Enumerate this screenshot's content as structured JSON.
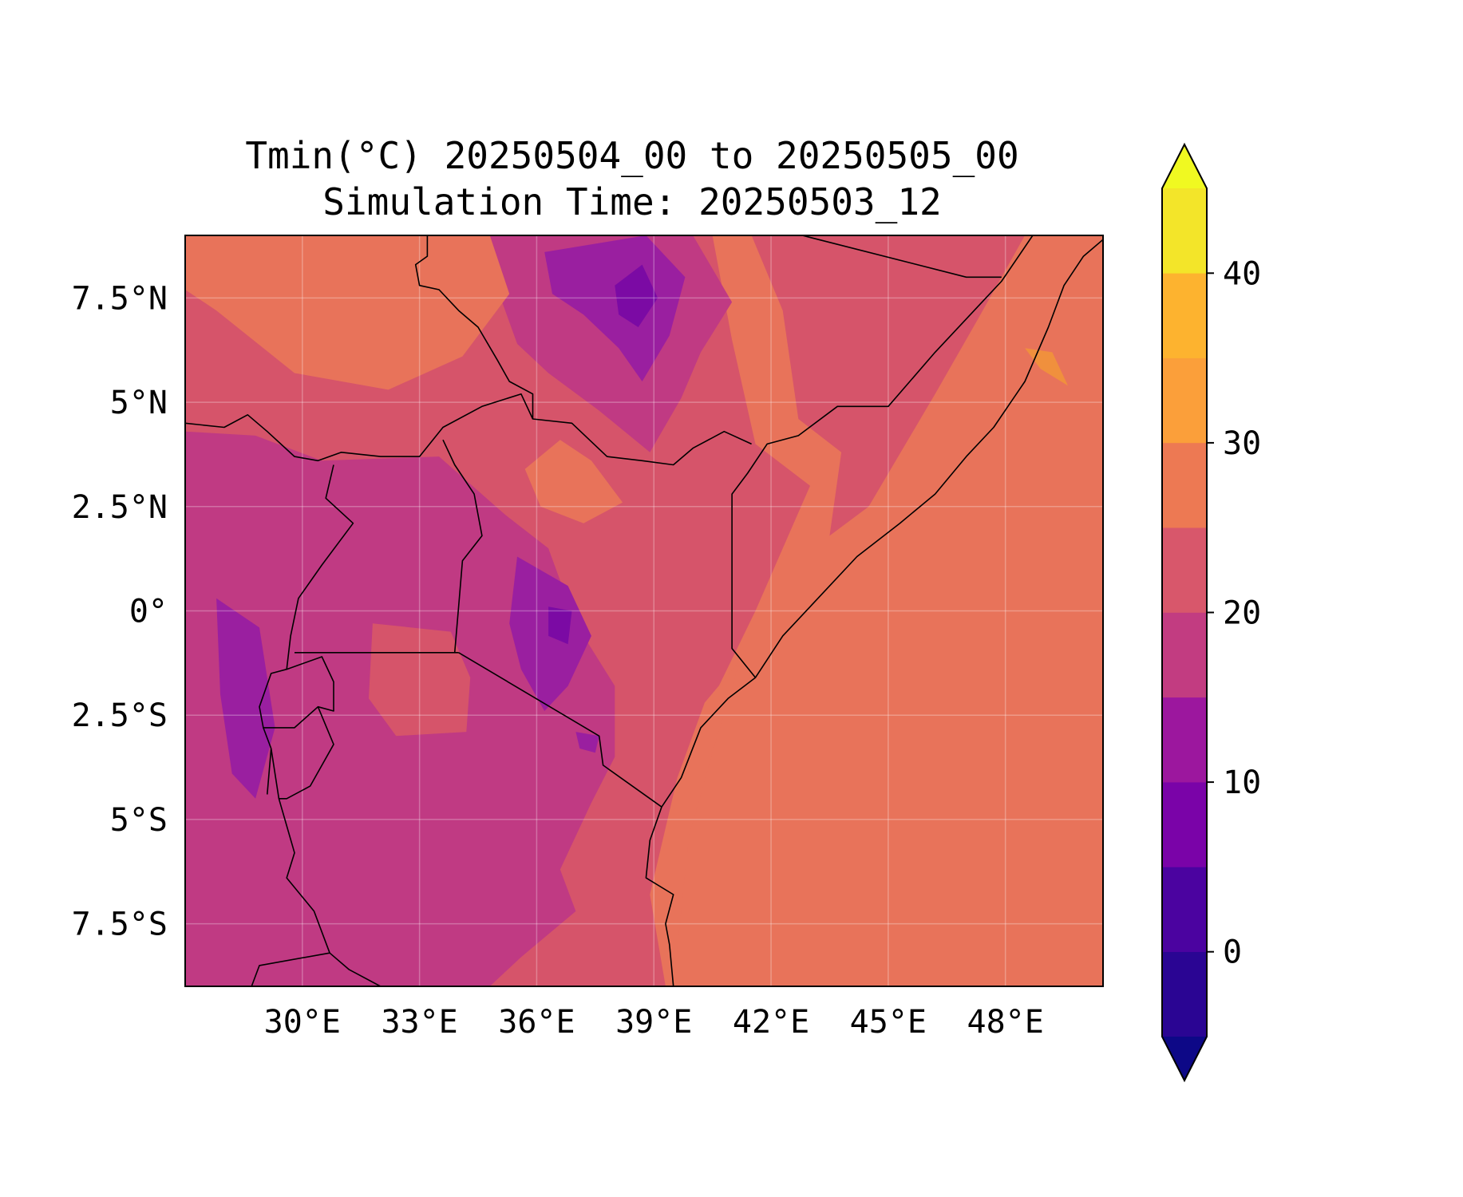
{
  "title": {
    "line1": "Tmin(°C) 20250504_00 to 20250505_00",
    "line2": "Simulation Time: 20250503_12"
  },
  "map": {
    "lon_range": [
      27,
      50.5
    ],
    "lat_range": [
      -9,
      9
    ],
    "lon_ticks": [
      {
        "value": 30,
        "label": "30°E"
      },
      {
        "value": 33,
        "label": "33°E"
      },
      {
        "value": 36,
        "label": "36°E"
      },
      {
        "value": 39,
        "label": "39°E"
      },
      {
        "value": 42,
        "label": "42°E"
      },
      {
        "value": 45,
        "label": "45°E"
      },
      {
        "value": 48,
        "label": "48°E"
      }
    ],
    "lat_ticks": [
      {
        "value": 7.5,
        "label": "7.5°N"
      },
      {
        "value": 5,
        "label": "5°N"
      },
      {
        "value": 2.5,
        "label": "2.5°N"
      },
      {
        "value": 0,
        "label": "0°"
      },
      {
        "value": -2.5,
        "label": "2.5°S"
      },
      {
        "value": -5,
        "label": "5°S"
      },
      {
        "value": -7.5,
        "label": "7.5°S"
      }
    ],
    "gridlines": true,
    "base_fill_color": "#e8735a",
    "regions": [
      {
        "name": "inland-lowland",
        "color": "#d6546a",
        "points": [
          [
            27,
            9
          ],
          [
            40.5,
            9
          ],
          [
            41,
            6.5
          ],
          [
            41.6,
            4
          ],
          [
            43,
            3
          ],
          [
            41.6,
            0
          ],
          [
            40.3,
            -2.5
          ],
          [
            39.5,
            -5
          ],
          [
            39,
            -7
          ],
          [
            39.5,
            -9
          ],
          [
            27,
            -9
          ]
        ]
      },
      {
        "name": "east-highland",
        "color": "#d6546a",
        "points": [
          [
            41.5,
            9
          ],
          [
            48.5,
            9
          ],
          [
            47.3,
            7
          ],
          [
            46.2,
            5.2
          ],
          [
            44.5,
            2.5
          ],
          [
            43.5,
            1.8
          ],
          [
            43.8,
            3.8
          ],
          [
            42.7,
            4.6
          ],
          [
            42.3,
            7.2
          ]
        ]
      },
      {
        "name": "west-highland",
        "color": "#c03a83",
        "points": [
          [
            27,
            4.3
          ],
          [
            28.8,
            4.2
          ],
          [
            30.5,
            3.6
          ],
          [
            33.5,
            3.7
          ],
          [
            35.2,
            2.3
          ],
          [
            36.3,
            1.5
          ],
          [
            37,
            -0.3
          ],
          [
            38,
            -1.8
          ],
          [
            38,
            -3.5
          ],
          [
            37.4,
            -4.6
          ],
          [
            36.6,
            -6.2
          ],
          [
            37,
            -7.2
          ],
          [
            35.6,
            -8.3
          ],
          [
            34.8,
            -9
          ],
          [
            27,
            -9
          ]
        ]
      },
      {
        "name": "ethiopian-plateau",
        "color": "#c03a83",
        "points": [
          [
            34.8,
            9
          ],
          [
            40,
            9
          ],
          [
            41,
            7.4
          ],
          [
            40.2,
            6.2
          ],
          [
            39.7,
            5.1
          ],
          [
            38.9,
            3.8
          ],
          [
            37.6,
            4.8
          ],
          [
            36.3,
            5.7
          ],
          [
            35.5,
            6.4
          ],
          [
            35,
            7.7
          ]
        ]
      },
      {
        "name": "ethiopian-peaks",
        "color": "#9a1fa0",
        "points": [
          [
            36.2,
            8.6
          ],
          [
            38.8,
            9
          ],
          [
            39.8,
            8
          ],
          [
            39.4,
            6.6
          ],
          [
            38.7,
            5.5
          ],
          [
            38.1,
            6.3
          ],
          [
            37.2,
            7.1
          ],
          [
            36.4,
            7.6
          ]
        ]
      },
      {
        "name": "kenya-highland",
        "color": "#9a1fa0",
        "points": [
          [
            35.5,
            1.3
          ],
          [
            36.8,
            0.6
          ],
          [
            37.4,
            -0.6
          ],
          [
            36.8,
            -1.8
          ],
          [
            36.2,
            -2.4
          ],
          [
            35.6,
            -1.4
          ],
          [
            35.3,
            -0.3
          ]
        ]
      },
      {
        "name": "kilimanjaro",
        "color": "#9a1fa0",
        "points": [
          [
            37,
            -2.9
          ],
          [
            37.6,
            -3
          ],
          [
            37.5,
            -3.4
          ],
          [
            37.1,
            -3.3
          ]
        ]
      },
      {
        "name": "albertine-west",
        "color": "#9a1fa0",
        "points": [
          [
            27.8,
            0.3
          ],
          [
            28.9,
            -0.4
          ],
          [
            29.3,
            -2.8
          ],
          [
            28.8,
            -4.5
          ],
          [
            28.2,
            -3.9
          ],
          [
            27.9,
            -2
          ]
        ]
      },
      {
        "name": "ethiopian-peak-core",
        "color": "#7b0aa4",
        "points": [
          [
            38,
            7.8
          ],
          [
            38.7,
            8.3
          ],
          [
            39.1,
            7.5
          ],
          [
            38.6,
            6.8
          ],
          [
            38.1,
            7.1
          ]
        ]
      },
      {
        "name": "kenya-peak-core",
        "color": "#7b0aa4",
        "points": [
          [
            36.3,
            0.1
          ],
          [
            36.9,
            0
          ],
          [
            36.8,
            -0.8
          ],
          [
            36.3,
            -0.6
          ]
        ]
      },
      {
        "name": "lake-victoria-warm",
        "color": "#d6546a",
        "points": [
          [
            31.8,
            -0.3
          ],
          [
            33.8,
            -0.5
          ],
          [
            34.3,
            -1.6
          ],
          [
            34.2,
            -2.9
          ],
          [
            32.4,
            -3
          ],
          [
            31.7,
            -2.1
          ]
        ]
      },
      {
        "name": "coastal-strip",
        "color": "#e8735a",
        "points": [
          [
            39.6,
            -4
          ],
          [
            40.3,
            -2.2
          ],
          [
            41.2,
            -1.2
          ],
          [
            40.5,
            -3.4
          ],
          [
            39.9,
            -5.4
          ],
          [
            39.5,
            -9
          ],
          [
            39.3,
            -9
          ],
          [
            38.9,
            -6.8
          ]
        ]
      },
      {
        "name": "turkana-warm",
        "color": "#e8735a",
        "points": [
          [
            35.7,
            3.4
          ],
          [
            36.6,
            4.1
          ],
          [
            37.4,
            3.6
          ],
          [
            38.2,
            2.6
          ],
          [
            37.2,
            2.1
          ],
          [
            36.1,
            2.5
          ]
        ]
      },
      {
        "name": "south-sudan-warm",
        "color": "#e8735a",
        "points": [
          [
            27,
            9
          ],
          [
            34.8,
            9
          ],
          [
            35.3,
            7.6
          ],
          [
            34.1,
            6.1
          ],
          [
            32.2,
            5.3
          ],
          [
            29.8,
            5.7
          ],
          [
            27.8,
            7.2
          ],
          [
            27,
            7.7
          ]
        ]
      },
      {
        "name": "red-sea-warm",
        "color": "#f0903d",
        "points": [
          [
            48.5,
            6.3
          ],
          [
            48.9,
            5.8
          ],
          [
            49.6,
            5.4
          ],
          [
            49.2,
            6.2
          ]
        ]
      }
    ],
    "borders": [
      {
        "name": "south-sudan-ethiopia-border",
        "points": [
          [
            33.2,
            9
          ],
          [
            33.2,
            8.5
          ],
          [
            32.9,
            8.3
          ],
          [
            33,
            7.8
          ],
          [
            33.5,
            7.7
          ],
          [
            34,
            7.2
          ],
          [
            34.5,
            6.8
          ],
          [
            35,
            6
          ],
          [
            35.3,
            5.5
          ],
          [
            35.9,
            5.2
          ],
          [
            35.9,
            4.6
          ],
          [
            36.9,
            4.5
          ],
          [
            37.8,
            3.7
          ],
          [
            38.7,
            3.6
          ],
          [
            39.5,
            3.5
          ],
          [
            40,
            3.9
          ],
          [
            40.8,
            4.3
          ],
          [
            41.5,
            4
          ]
        ]
      },
      {
        "name": "south-sudan-uganda-kenya-border",
        "points": [
          [
            27,
            4.5
          ],
          [
            28,
            4.4
          ],
          [
            28.6,
            4.7
          ],
          [
            29.1,
            4.3
          ],
          [
            29.8,
            3.7
          ],
          [
            30.4,
            3.6
          ],
          [
            31,
            3.8
          ],
          [
            32,
            3.7
          ],
          [
            33,
            3.7
          ],
          [
            33.6,
            4.4
          ],
          [
            34.6,
            4.9
          ],
          [
            35.6,
            5.2
          ],
          [
            35.9,
            4.6
          ]
        ]
      },
      {
        "name": "uganda-kenya-border",
        "points": [
          [
            33.6,
            4.1
          ],
          [
            33.9,
            3.5
          ],
          [
            34.4,
            2.8
          ],
          [
            34.6,
            1.8
          ],
          [
            34.1,
            1.2
          ],
          [
            34,
            0.1
          ],
          [
            33.9,
            -1
          ]
        ]
      },
      {
        "name": "drc-uganda-border",
        "points": [
          [
            30.8,
            3.5
          ],
          [
            30.6,
            2.7
          ],
          [
            31.3,
            2.1
          ],
          [
            30.5,
            1.1
          ],
          [
            29.9,
            0.3
          ],
          [
            29.7,
            -0.6
          ],
          [
            29.6,
            -1.4
          ]
        ]
      },
      {
        "name": "kenya-tanzania-border",
        "points": [
          [
            34,
            -1
          ],
          [
            37.6,
            -3
          ],
          [
            37.7,
            -3.7
          ],
          [
            39.2,
            -4.7
          ]
        ]
      },
      {
        "name": "tanzania-lake-victoria-north",
        "points": [
          [
            29.8,
            -1
          ],
          [
            34,
            -1
          ]
        ]
      },
      {
        "name": "rwanda-burundi",
        "points": [
          [
            29.6,
            -1.4
          ],
          [
            30.5,
            -1.1
          ],
          [
            30.8,
            -1.7
          ],
          [
            30.8,
            -2.4
          ],
          [
            30.4,
            -2.3
          ],
          [
            29.8,
            -2.8
          ],
          [
            29,
            -2.8
          ],
          [
            28.9,
            -2.3
          ],
          [
            29.2,
            -1.5
          ],
          [
            29.6,
            -1.4
          ]
        ]
      },
      {
        "name": "burundi-tanzania",
        "points": [
          [
            30.4,
            -2.3
          ],
          [
            30.8,
            -3.2
          ],
          [
            30.2,
            -4.2
          ],
          [
            29.6,
            -4.5
          ],
          [
            29.4,
            -4.5
          ]
        ]
      },
      {
        "name": "lake-tanganyika-east",
        "points": [
          [
            29.2,
            -3.3
          ],
          [
            29.4,
            -4.5
          ],
          [
            29.8,
            -5.8
          ],
          [
            29.6,
            -6.4
          ],
          [
            30.3,
            -7.2
          ],
          [
            30.7,
            -8.2
          ],
          [
            31.2,
            -8.6
          ],
          [
            32,
            -9
          ]
        ]
      },
      {
        "name": "lake-tanganyika-west",
        "points": [
          [
            29,
            -2.8
          ],
          [
            29.2,
            -3.3
          ],
          [
            29.1,
            -4.4
          ]
        ]
      },
      {
        "name": "kenya-somalia-border",
        "points": [
          [
            41.6,
            -1.6
          ],
          [
            41,
            -0.9
          ],
          [
            41,
            2.8
          ],
          [
            41.4,
            3.3
          ],
          [
            41.9,
            4
          ],
          [
            42.7,
            4.2
          ],
          [
            43.7,
            4.9
          ],
          [
            45,
            4.9
          ],
          [
            46.2,
            6.2
          ],
          [
            47.9,
            7.9
          ],
          [
            48.7,
            9
          ]
        ]
      },
      {
        "name": "ethiopia-somalia-north",
        "points": [
          [
            42.8,
            9
          ],
          [
            47,
            8
          ],
          [
            47.9,
            8
          ]
        ]
      },
      {
        "name": "zambia-border",
        "points": [
          [
            28.7,
            -9
          ],
          [
            28.9,
            -8.5
          ],
          [
            30.7,
            -8.2
          ]
        ]
      },
      {
        "name": "east-africa-coastline",
        "points": [
          [
            39.5,
            -9
          ],
          [
            39.4,
            -8
          ],
          [
            39.3,
            -7.5
          ],
          [
            39.5,
            -6.8
          ],
          [
            38.8,
            -6.4
          ],
          [
            38.9,
            -5.5
          ],
          [
            39.2,
            -4.7
          ],
          [
            39.7,
            -4
          ],
          [
            40.2,
            -2.8
          ],
          [
            40.9,
            -2.1
          ],
          [
            41.6,
            -1.6
          ],
          [
            42.3,
            -0.6
          ],
          [
            43.3,
            0.4
          ],
          [
            44.2,
            1.3
          ],
          [
            45.3,
            2.1
          ],
          [
            46.2,
            2.8
          ],
          [
            47,
            3.7
          ],
          [
            47.7,
            4.4
          ],
          [
            48.5,
            5.5
          ],
          [
            49.1,
            6.8
          ],
          [
            49.5,
            7.8
          ],
          [
            50,
            8.5
          ],
          [
            50.5,
            8.9
          ]
        ]
      }
    ]
  },
  "colorbar": {
    "boundaries": [
      -5,
      0,
      5,
      10,
      15,
      20,
      25,
      30,
      35,
      40,
      45
    ],
    "colors": [
      "#2a0593",
      "#4b03a0",
      "#7a03a8",
      "#9c179e",
      "#c23c81",
      "#d8576b",
      "#ed7953",
      "#fb9f3a",
      "#fdb32f",
      "#f3e529"
    ],
    "extend_min_color": "#0d0887",
    "extend_max_color": "#f0f921",
    "ticks": [
      {
        "value": 0,
        "label": "0"
      },
      {
        "value": 10,
        "label": "10"
      },
      {
        "value": 20,
        "label": "20"
      },
      {
        "value": 30,
        "label": "30"
      },
      {
        "value": 40,
        "label": "40"
      }
    ]
  }
}
